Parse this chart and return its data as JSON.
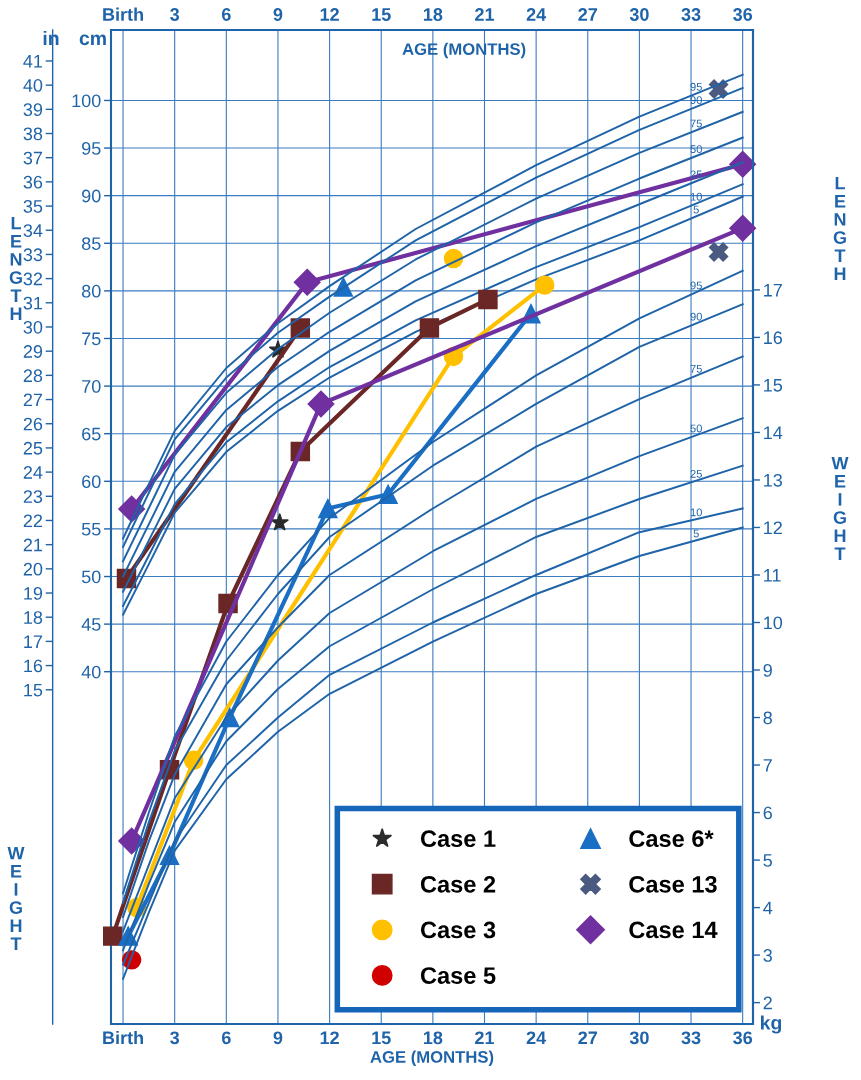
{
  "chart_data": {
    "type": "line",
    "x": [
      0,
      1.5,
      3,
      6,
      9,
      12,
      17,
      24,
      30,
      36
    ],
    "xlim": [
      -0.7,
      36.6
    ],
    "xticks": [
      {
        "value": 0,
        "label": "Birth"
      },
      3,
      6,
      9,
      12,
      15,
      18,
      21,
      24,
      27,
      30,
      33,
      36
    ],
    "xlabel": "AGE (MONTHS)",
    "x2lim": [
      -0.7,
      36.6
    ],
    "x2ticks": [
      {
        "value": 0,
        "label": "Birth"
      },
      3,
      6,
      9,
      12,
      15,
      18,
      21,
      24,
      27,
      30,
      33,
      36
    ],
    "x2label": "AGE (MONTHS)",
    "ylim": [
      3,
      107.4
    ],
    "yticks": [
      40,
      45,
      50,
      55,
      60,
      65,
      70,
      75,
      80,
      85,
      90,
      95,
      100
    ],
    "ylabel": "cm",
    "y2lim": [
      1.55,
      22.47
    ],
    "y2ticks": [
      2,
      3,
      4,
      5,
      6,
      7,
      8,
      9,
      10,
      11,
      12,
      13,
      14,
      15,
      16,
      17
    ],
    "y2label": "kg",
    "y3lim": [
      1.18,
      42.28
    ],
    "y3ticks": [
      15,
      16,
      17,
      18,
      19,
      20,
      21,
      22,
      23,
      24,
      25,
      26,
      27,
      28,
      29,
      30,
      31,
      32,
      33,
      34,
      35,
      36,
      37,
      38,
      39,
      40,
      41
    ],
    "y3label": "in",
    "annotations": [
      "LENGTH",
      "LENGTH",
      "WEIGHT",
      "WEIGHT"
    ],
    "grid": true,
    "legend": "lower right",
    "series": [
      {
        "name": "Case 1",
        "type": "scatter",
        "color": "#2b2b2b",
        "axis": "y2",
        "marker": "star",
        "x": [
          9.1
        ],
        "values": [
          12.1
        ]
      },
      {
        "name": "Case 2",
        "type": "line",
        "color": "#6b2626",
        "axis": "y2",
        "marker": "square",
        "x": [
          -0.6,
          2.7,
          6.1,
          10.3,
          17.8,
          21.2
        ],
        "values": [
          3.4,
          6.9,
          10.4,
          13.6,
          16.2,
          16.8
        ]
      },
      {
        "name": "Case 3",
        "type": "line",
        "color": "#ffc000",
        "axis": "y2",
        "marker": "circle",
        "x": [
          0.8,
          4.1,
          19.2,
          24.5
        ],
        "values": [
          4.0,
          7.1,
          15.6,
          17.1
        ]
      },
      {
        "name": "Case 5",
        "type": "scatter",
        "color": "#d00000",
        "axis": "y2",
        "marker": "circle",
        "x": [
          0.5
        ],
        "values": [
          2.9
        ]
      },
      {
        "name": "Case 6*",
        "type": "line",
        "color": "#1a6fc4",
        "axis": "y2",
        "marker": "triangle",
        "x": [
          0.3,
          2.7,
          6.2,
          11.9,
          15.4,
          23.7
        ],
        "values": [
          3.4,
          5.1,
          8.0,
          12.4,
          12.7,
          16.5
        ]
      },
      {
        "name": "Case 13",
        "type": "scatter",
        "color": "#4a5a80",
        "axis": "y2",
        "marker": "cross",
        "x": [
          34.6
        ],
        "values": [
          17.8
        ]
      },
      {
        "name": "Case 14",
        "type": "line",
        "color": "#7030a0",
        "axis": "y2",
        "marker": "diamond",
        "x": [
          0.5,
          11.5,
          36.0
        ],
        "values": [
          5.4,
          14.6,
          18.3
        ]
      },
      {
        "type": "scatter",
        "color": "#2b2b2b",
        "axis": "y",
        "marker": "star",
        "x": [
          9.0
        ],
        "values": [
          73.8
        ]
      },
      {
        "type": "line",
        "color": "#6b2626",
        "axis": "y",
        "marker": "square",
        "x": [
          0.2,
          10.3
        ],
        "values": [
          49.8,
          76.1
        ]
      },
      {
        "type": "scatter",
        "color": "#ffc000",
        "axis": "y",
        "marker": "circle",
        "x": [
          19.2
        ],
        "values": [
          83.4
        ]
      },
      {
        "type": "scatter",
        "color": "#1a6fc4",
        "axis": "y",
        "marker": "triangle",
        "x": [
          12.8
        ],
        "values": [
          80.4
        ]
      },
      {
        "type": "scatter",
        "color": "#4a5a80",
        "axis": "y",
        "marker": "cross",
        "x": [
          34.6
        ],
        "values": [
          101.2
        ]
      },
      {
        "type": "line",
        "color": "#7030a0",
        "axis": "y",
        "marker": "diamond",
        "x": [
          0.5,
          10.7,
          36.0
        ],
        "values": [
          57.1,
          80.9,
          93.3
        ]
      },
      {
        "name": "95",
        "color": "#1f63a8",
        "axis": "y",
        "marker": "none",
        "values": [
          54.0,
          59.7,
          65.3,
          71.9,
          76.6,
          80.5,
          86.5,
          93.2,
          98.3,
          102.7
        ]
      },
      {
        "name": "90",
        "color": "#1f63a8",
        "axis": "y",
        "marker": "none",
        "values": [
          53.1,
          58.8,
          64.4,
          70.9,
          75.6,
          79.4,
          85.3,
          91.9,
          96.9,
          101.3
        ]
      },
      {
        "name": "75",
        "color": "#1f63a8",
        "axis": "y",
        "marker": "none",
        "values": [
          51.6,
          57.2,
          62.8,
          69.3,
          73.9,
          77.7,
          83.3,
          89.7,
          94.5,
          98.8
        ]
      },
      {
        "name": "50",
        "color": "#1f63a8",
        "axis": "y",
        "marker": "none",
        "values": [
          50.0,
          55.5,
          61.0,
          67.5,
          72.0,
          75.7,
          81.1,
          87.2,
          91.8,
          96.1
        ]
      },
      {
        "name": "25",
        "color": "#1f63a8",
        "axis": "y",
        "marker": "none",
        "values": [
          48.4,
          53.8,
          59.2,
          65.7,
          70.1,
          73.7,
          78.9,
          84.7,
          89.1,
          93.5
        ]
      },
      {
        "name": "10",
        "color": "#1f63a8",
        "axis": "y",
        "marker": "none",
        "values": [
          46.9,
          52.2,
          57.6,
          64.1,
          68.4,
          72.0,
          76.9,
          82.5,
          86.7,
          91.2
        ]
      },
      {
        "name": "5",
        "color": "#1f63a8",
        "axis": "y",
        "marker": "none",
        "values": [
          46.0,
          51.3,
          56.7,
          63.1,
          67.4,
          70.9,
          75.7,
          81.2,
          85.3,
          89.9
        ]
      },
      {
        "name": "95",
        "color": "#1f63a8",
        "axis": "y2",
        "marker": "none",
        "x": [
          0,
          1.5,
          3,
          6,
          9,
          12,
          18,
          24,
          30,
          36
        ],
        "values": [
          4.3,
          6.0,
          7.6,
          9.6,
          11.0,
          12.2,
          13.8,
          15.2,
          16.4,
          17.4
        ]
      },
      {
        "name": "90",
        "color": "#1f63a8",
        "axis": "y2",
        "marker": "none",
        "x": [
          0,
          1.5,
          3,
          6,
          9,
          12,
          18,
          24,
          30,
          36
        ],
        "values": [
          4.1,
          5.8,
          7.3,
          9.2,
          10.6,
          11.8,
          13.3,
          14.6,
          15.8,
          16.7
        ]
      },
      {
        "name": "75",
        "color": "#1f63a8",
        "axis": "y2",
        "marker": "none",
        "x": [
          0,
          1.5,
          3,
          6,
          9,
          12,
          18,
          24,
          30,
          36
        ],
        "values": [
          3.8,
          5.4,
          6.8,
          8.7,
          9.9,
          11.0,
          12.4,
          13.7,
          14.7,
          15.6
        ]
      },
      {
        "name": "50",
        "color": "#1f63a8",
        "axis": "y2",
        "marker": "none",
        "x": [
          0,
          1.5,
          3,
          6,
          9,
          12,
          18,
          24,
          30,
          36
        ],
        "values": [
          3.5,
          4.9,
          6.3,
          8.0,
          9.2,
          10.2,
          11.5,
          12.6,
          13.5,
          14.3
        ]
      },
      {
        "name": "25",
        "color": "#1f63a8",
        "axis": "y2",
        "marker": "none",
        "x": [
          0,
          1.5,
          3,
          6,
          9,
          12,
          18,
          24,
          30,
          36
        ],
        "values": [
          3.1,
          4.5,
          5.8,
          7.5,
          8.6,
          9.5,
          10.7,
          11.8,
          12.6,
          13.3
        ]
      },
      {
        "name": "10",
        "color": "#1f63a8",
        "axis": "y2",
        "marker": "none",
        "x": [
          0,
          1.5,
          3,
          6,
          9,
          12,
          18,
          24,
          30,
          36
        ],
        "values": [
          2.8,
          4.1,
          5.4,
          7.0,
          8.0,
          8.9,
          10.0,
          11.0,
          11.9,
          12.4
        ]
      },
      {
        "name": "5",
        "color": "#1f63a8",
        "axis": "y2",
        "marker": "none",
        "x": [
          0,
          1.5,
          3,
          6,
          9,
          12,
          18,
          24,
          30,
          36
        ],
        "values": [
          2.5,
          3.9,
          5.2,
          6.7,
          7.7,
          8.5,
          9.6,
          10.6,
          11.4,
          12.0
        ]
      }
    ]
  }
}
